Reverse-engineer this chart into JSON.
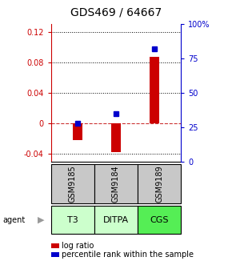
{
  "title": "GDS469 / 64667",
  "samples": [
    "GSM9185",
    "GSM9184",
    "GSM9189"
  ],
  "agents": [
    "T3",
    "DITPA",
    "CGS"
  ],
  "log_ratios": [
    -0.022,
    -0.038,
    0.087
  ],
  "percentile_ranks": [
    0.28,
    0.35,
    0.82
  ],
  "bar_color": "#cc0000",
  "dot_color": "#0000cc",
  "ylim_left": [
    -0.05,
    0.13
  ],
  "ylim_right": [
    0,
    1.0
  ],
  "yticks_left": [
    -0.04,
    0.0,
    0.04,
    0.08,
    0.12
  ],
  "ytick_labels_left": [
    "-0.04",
    "0",
    "0.04",
    "0.08",
    "0.12"
  ],
  "yticks_right": [
    0.0,
    0.25,
    0.5,
    0.75,
    1.0
  ],
  "ytick_labels_right": [
    "0",
    "25",
    "50",
    "75",
    "100%"
  ],
  "hlines_dotted": [
    -0.04,
    0.04,
    0.08,
    0.12
  ],
  "hline_dashed": 0.0,
  "sample_bg": "#c8c8c8",
  "agent_colors": [
    "#ccffcc",
    "#ccffcc",
    "#55ee55"
  ],
  "legend_log_color": "#cc0000",
  "legend_pct_color": "#0000cc",
  "bar_width": 0.25,
  "title_fontsize": 10,
  "tick_fontsize": 7,
  "label_fontsize": 7,
  "agent_fontsize": 8,
  "sample_fontsize": 7
}
